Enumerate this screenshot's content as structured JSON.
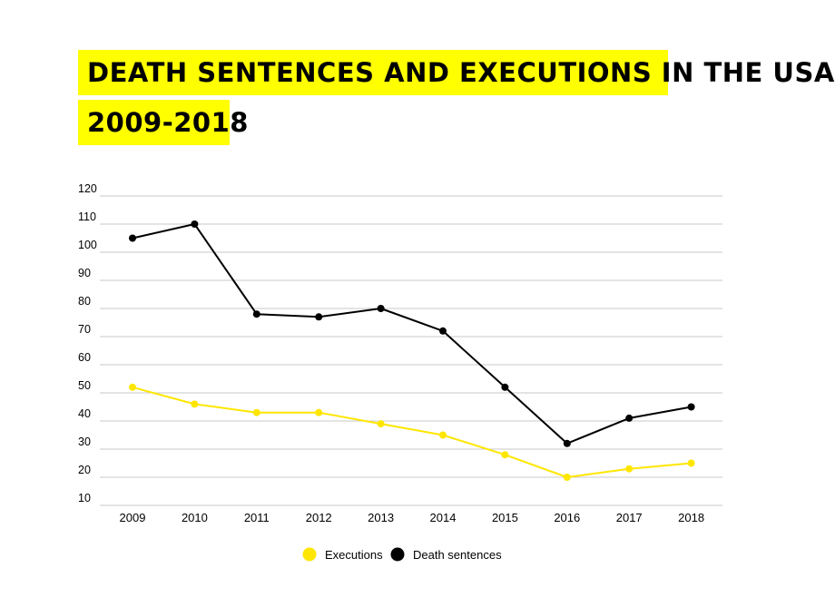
{
  "header": {
    "title_line1": "DEATH SENTENCES AND EXECUTIONS IN THE USA",
    "title_line2": "2009-2018"
  },
  "chart_data": {
    "type": "line",
    "title": "DEATH SENTENCES AND EXECUTIONS IN THE USA 2009-2018",
    "xlabel": "",
    "ylabel": "",
    "x": [
      "2009",
      "2010",
      "2011",
      "2012",
      "2013",
      "2014",
      "2015",
      "2016",
      "2017",
      "2018"
    ],
    "ylim": [
      10,
      120
    ],
    "yticks": [
      120,
      110,
      100,
      90,
      80,
      70,
      60,
      50,
      40,
      30,
      20,
      10
    ],
    "grid": true,
    "legend": "bottom-center",
    "series": [
      {
        "name": "Executions",
        "color": "#ffe600",
        "values": [
          52,
          46,
          43,
          43,
          39,
          35,
          28,
          20,
          23,
          25
        ]
      },
      {
        "name": "Death sentences",
        "color": "#000000",
        "values": [
          105,
          110,
          78,
          77,
          80,
          72,
          52,
          32,
          41,
          45
        ]
      }
    ]
  }
}
